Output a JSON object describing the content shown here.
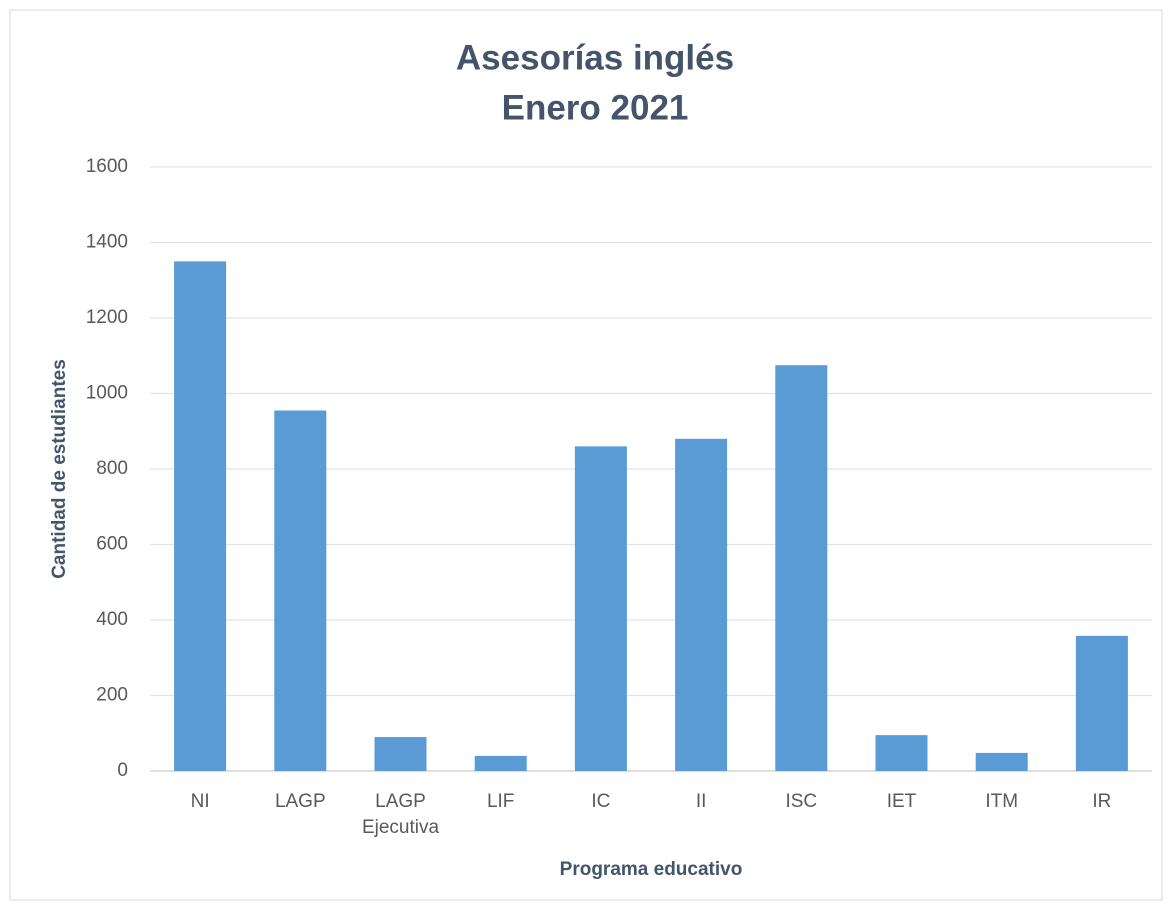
{
  "chart_data": {
    "type": "bar",
    "title": [
      "Asesorías inglés",
      "Enero 2021"
    ],
    "x_label": "Programa educativo",
    "y_label": "Cantidad de estudiantes",
    "categories": [
      "NI",
      "LAGP",
      "LAGP Ejecutiva",
      "LIF",
      "IC",
      "II",
      "ISC",
      "IET",
      "ITM",
      "IR"
    ],
    "values": [
      1350,
      955,
      90,
      40,
      860,
      880,
      1075,
      95,
      48,
      358
    ],
    "color": "#5b9bd5",
    "ylim": [
      0,
      1600
    ],
    "yticks": [
      0,
      200,
      400,
      600,
      800,
      1000,
      1200,
      1400,
      1600
    ],
    "grid": true
  }
}
